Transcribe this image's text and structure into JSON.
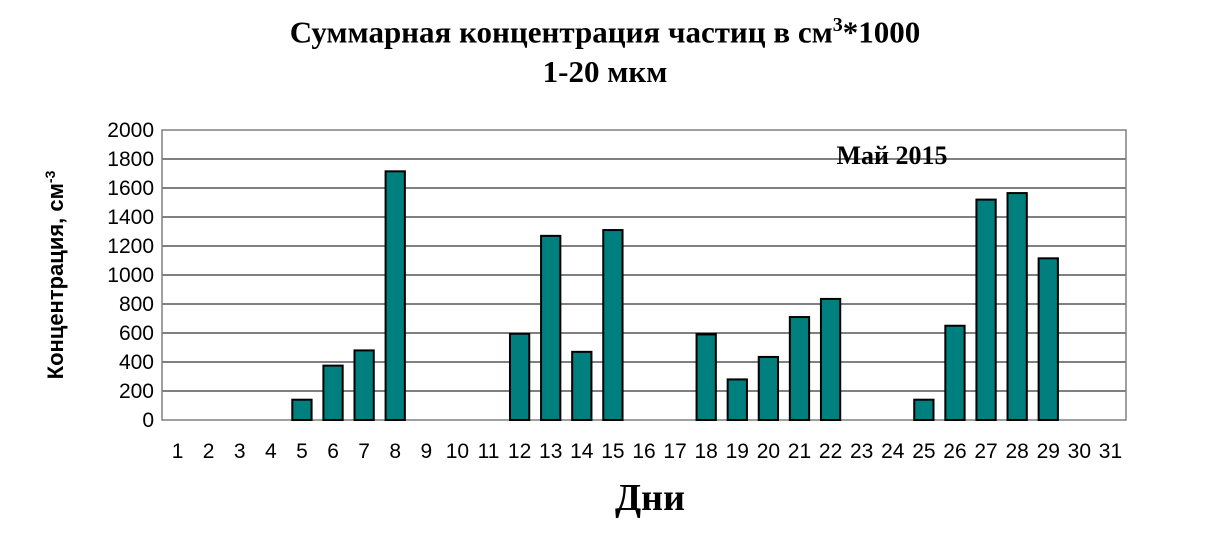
{
  "chart_data": {
    "type": "bar",
    "title": {
      "line1_main": "Суммарная концентрация частиц в см",
      "line1_sup": "3",
      "line1_tail": "*1000",
      "line2": "1-20 мкм"
    },
    "annotation": "Май 2015",
    "xlabel": "Дни",
    "ylabel": {
      "main": "Концентрация,  см",
      "sup": "-3"
    },
    "ylim": [
      0,
      2000
    ],
    "yticks": [
      0,
      200,
      400,
      600,
      800,
      1000,
      1200,
      1400,
      1600,
      1800,
      2000
    ],
    "grid": true,
    "legend": "none",
    "bar_color": "#007f7f",
    "categories": [
      "1",
      "2",
      "3",
      "4",
      "5",
      "6",
      "7",
      "8",
      "9",
      "10",
      "11",
      "12",
      "13",
      "14",
      "15",
      "16",
      "17",
      "18",
      "19",
      "20",
      "21",
      "22",
      "23",
      "24",
      "25",
      "26",
      "27",
      "28",
      "29",
      "30",
      "31"
    ],
    "values": [
      0,
      0,
      0,
      0,
      140,
      375,
      480,
      1715,
      0,
      0,
      0,
      595,
      1270,
      470,
      1310,
      0,
      0,
      590,
      280,
      435,
      710,
      835,
      0,
      0,
      140,
      650,
      1520,
      1565,
      1115,
      0,
      0
    ]
  }
}
